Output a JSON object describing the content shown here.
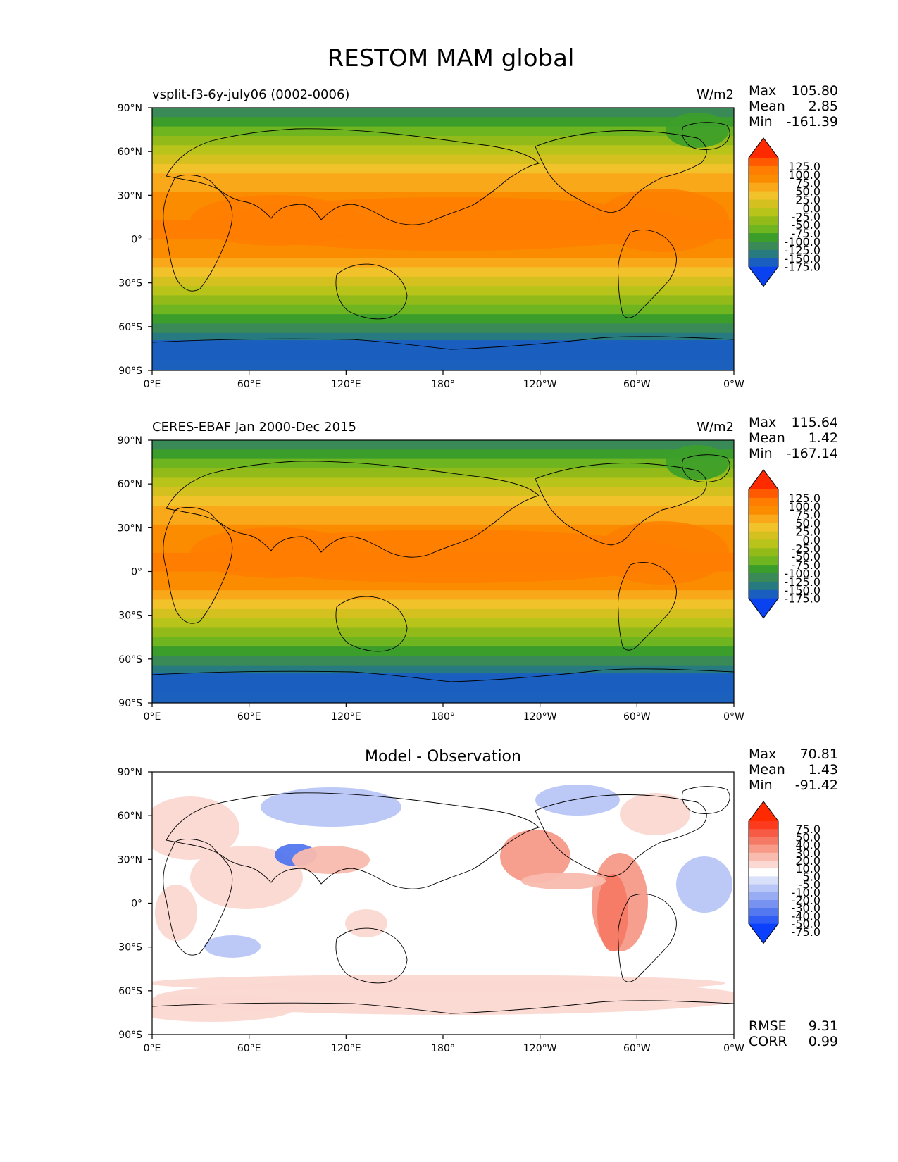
{
  "title": "RESTOM MAM global",
  "axes": {
    "lat_ticks": [
      "90°N",
      "60°N",
      "30°N",
      "0°",
      "30°S",
      "60°S",
      "90°S"
    ],
    "lon_ticks": [
      "0°E",
      "60°E",
      "120°E",
      "180°",
      "120°W",
      "60°W",
      "0°W"
    ]
  },
  "panels": [
    {
      "id": "model",
      "left_title": "vsplit-f3-6y-july06 (0002-0006)",
      "center_title": "",
      "units": "W/m2",
      "stats": [
        {
          "label": "Max",
          "value": "105.80"
        },
        {
          "label": "Mean",
          "value": "2.85"
        },
        {
          "label": "Min",
          "value": "-161.39"
        }
      ],
      "colorbar": {
        "levels": [
          "125.0",
          "100.0",
          "75.0",
          "50.0",
          "25.0",
          "0.0",
          "-25.0",
          "-50.0",
          "-75.0",
          "-100.0",
          "-125.0",
          "-150.0",
          "-175.0"
        ],
        "colors": [
          "#ff2a00",
          "#ff5a00",
          "#ff7d00",
          "#fb8c00",
          "#f9a81a",
          "#f2c22b",
          "#d4c120",
          "#b8c41a",
          "#92bb1a",
          "#6fb520",
          "#3c9e2a",
          "#3a8a58",
          "#277a80",
          "#1a5fc0",
          "#0b42f0"
        ]
      }
    },
    {
      "id": "obs",
      "left_title": "CERES-EBAF Jan 2000-Dec 2015",
      "center_title": "",
      "units": "W/m2",
      "stats": [
        {
          "label": "Max",
          "value": "115.64"
        },
        {
          "label": "Mean",
          "value": "1.42"
        },
        {
          "label": "Min",
          "value": "-167.14"
        }
      ],
      "colorbar": {
        "levels": [
          "125.0",
          "100.0",
          "75.0",
          "50.0",
          "25.0",
          "0.0",
          "-25.0",
          "-50.0",
          "-75.0",
          "-100.0",
          "-125.0",
          "-150.0",
          "-175.0"
        ],
        "colors": [
          "#ff2a00",
          "#ff5a00",
          "#ff7d00",
          "#fb8c00",
          "#f9a81a",
          "#f2c22b",
          "#d4c120",
          "#b8c41a",
          "#92bb1a",
          "#6fb520",
          "#3c9e2a",
          "#3a8a58",
          "#277a80",
          "#1a5fc0",
          "#0b42f0"
        ]
      }
    },
    {
      "id": "diff",
      "left_title": "",
      "center_title": "Model - Observation",
      "units": "",
      "stats": [
        {
          "label": "Max",
          "value": "70.81"
        },
        {
          "label": "Mean",
          "value": "1.43"
        },
        {
          "label": "Min",
          "value": "-91.42"
        }
      ],
      "extra_stats": [
        {
          "label": "RMSE",
          "value": "9.31"
        },
        {
          "label": "CORR",
          "value": "0.99"
        }
      ],
      "colorbar": {
        "levels": [
          "75.0",
          "50.0",
          "40.0",
          "30.0",
          "20.0",
          "10.0",
          "5.0",
          "-5.0",
          "-10.0",
          "-20.0",
          "-30.0",
          "-40.0",
          "-50.0",
          "-75.0"
        ],
        "colors": [
          "#ff2a00",
          "#fb3a1e",
          "#f75a45",
          "#f57a66",
          "#f79a88",
          "#f9bbae",
          "#fbd8d2",
          "#ffffff",
          "#d8e0fa",
          "#b8c6f7",
          "#98acf4",
          "#7892f1",
          "#5377ee",
          "#2e5cf4",
          "#0b40ff"
        ]
      }
    }
  ]
}
